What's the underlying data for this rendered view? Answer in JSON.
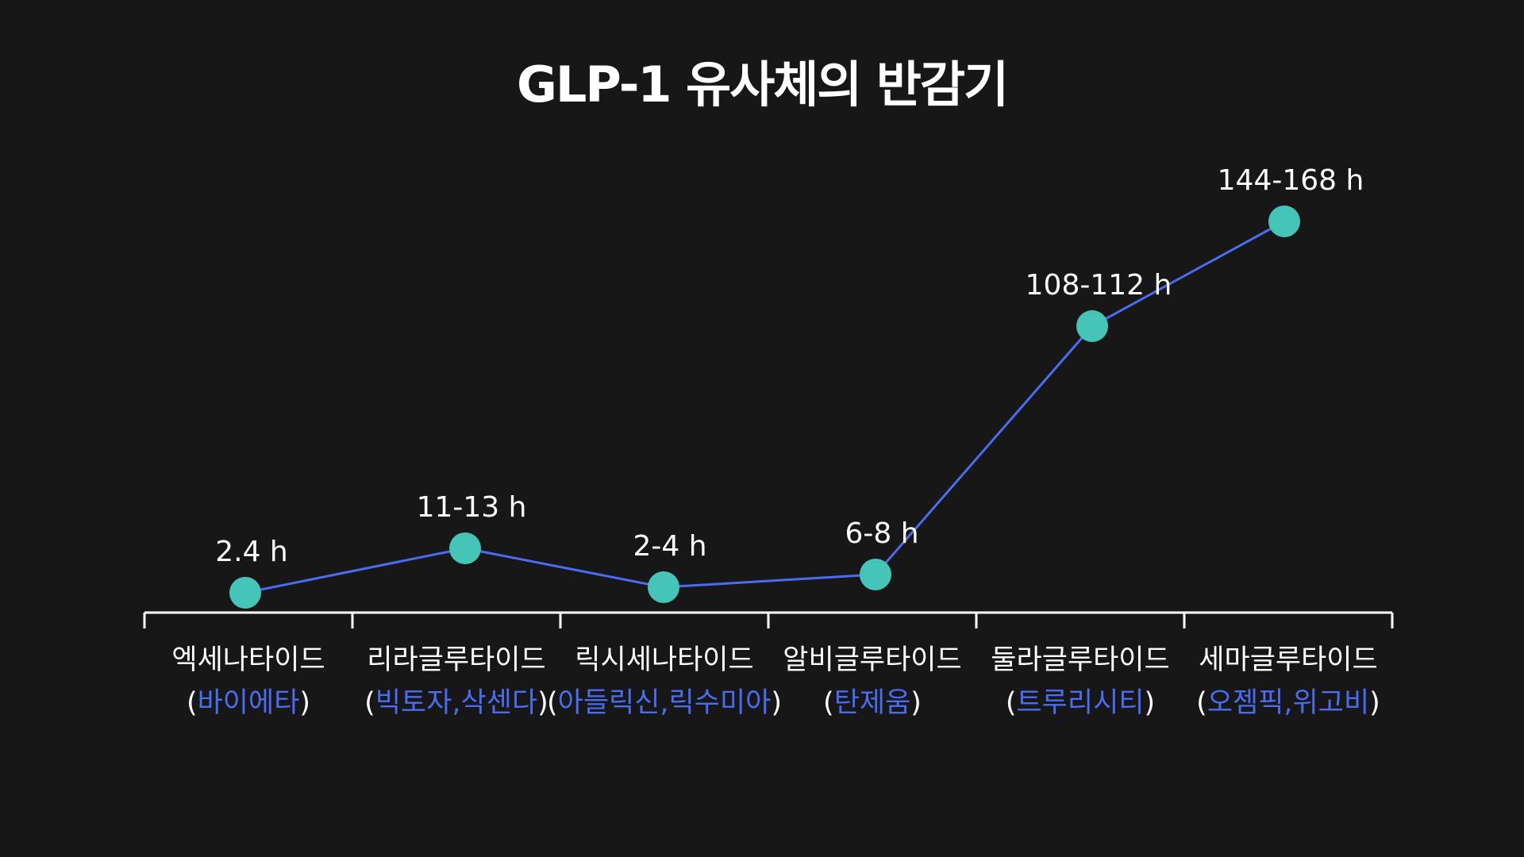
{
  "chart_data": {
    "type": "line",
    "title": "GLP-1 유사체의 반감기",
    "xlabel": "",
    "ylabel": "",
    "categories": [
      {
        "name": "엑세나타이드",
        "brands": "바이에타"
      },
      {
        "name": "리라글루타이드",
        "brands": "빅토자,삭센다"
      },
      {
        "name": "릭시세나타이드",
        "brands": "아들릭신,릭수미아"
      },
      {
        "name": "알비글루타이드",
        "brands": "탄제움"
      },
      {
        "name": "둘라글루타이드",
        "brands": "트루리시티"
      },
      {
        "name": "세마글루타이드",
        "brands": "오젬픽,위고비"
      }
    ],
    "values": [
      2.4,
      12,
      3,
      7,
      110,
      156
    ],
    "value_labels": [
      "2.4 h",
      "11-13 h",
      "2-4 h",
      "6-8 h",
      "108-112 h",
      "144-168 h"
    ],
    "ylim": [
      0,
      170
    ],
    "grid": false,
    "legend": "none"
  },
  "colors": {
    "background": "#171717",
    "line": "#4a6cf0",
    "marker": "#45c4b8",
    "axis": "#ffffff",
    "text": "#ffffff",
    "brand_text": "#4a6cf0"
  },
  "punctuation": {
    "open_paren": "(",
    "close_paren": ")"
  }
}
